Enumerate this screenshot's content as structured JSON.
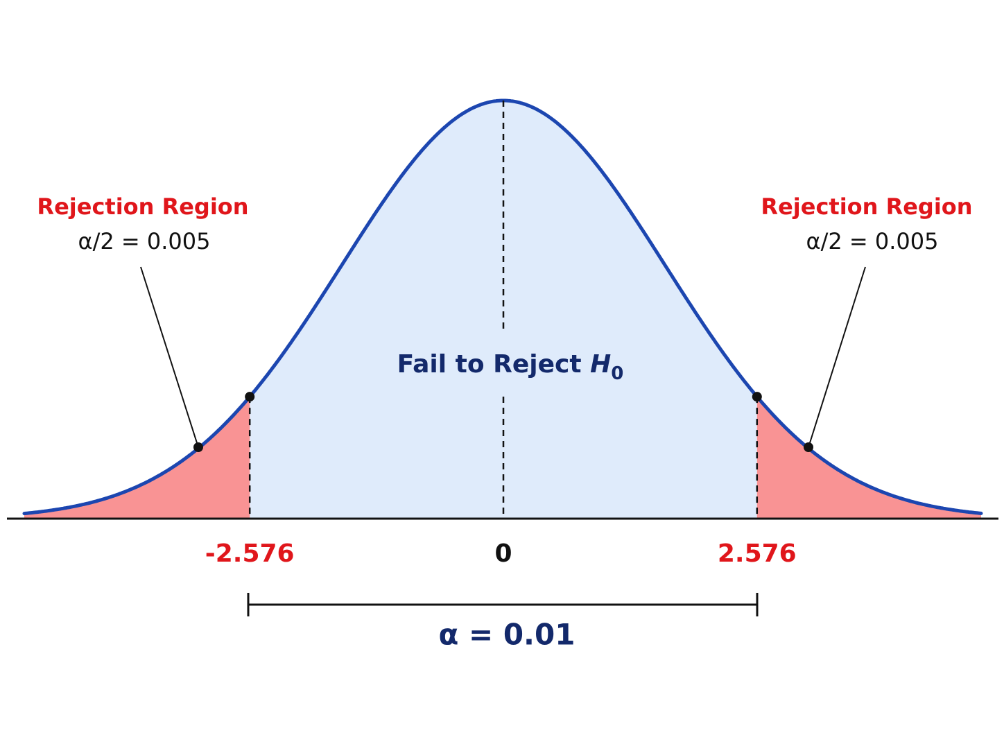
{
  "left_annotation": {
    "title": "Rejection Region",
    "value": "α/2 = 0.005"
  },
  "right_annotation": {
    "title": "Rejection Region",
    "value": "α/2 = 0.005"
  },
  "center_label": {
    "text": "Fail to Reject",
    "variable": "H",
    "subscript": "0"
  },
  "axis_labels": [
    "-2.576",
    "0",
    "2.576"
  ],
  "bracket_label": "α = 0.01"
}
